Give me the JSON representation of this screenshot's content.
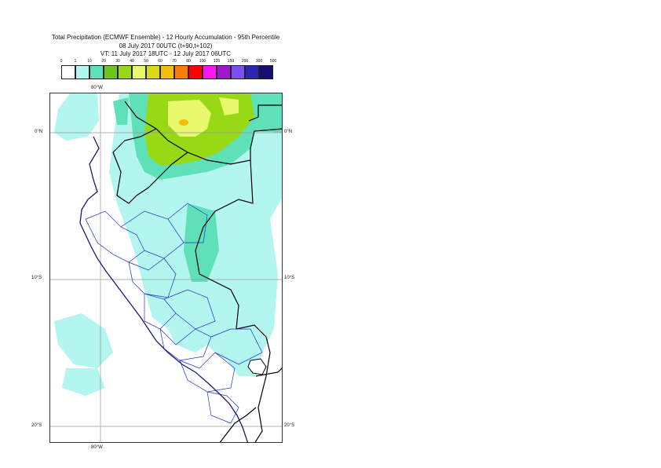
{
  "header": {
    "title_line1": "Total Precipitation (ECMWF Ensemble) - 12 Hourly Accumulation - 95th Percentile",
    "title_line2": "08 July 2017 00UTC (t+90,t+102)",
    "title_line3": "VT: 11 July 2017 18UTC - 12 July 2017 06UTC"
  },
  "legend": {
    "thresholds": [
      "0",
      "1",
      "10",
      "20",
      "30",
      "40",
      "50",
      "60",
      "70",
      "80",
      "100",
      "125",
      "150",
      "200",
      "300",
      "500"
    ],
    "colors": [
      "#ffffff",
      "#b3f5ef",
      "#5ee0b8",
      "#6cc61f",
      "#98d916",
      "#e8fa6c",
      "#dcd915",
      "#f3be0c",
      "#fd7d05",
      "#fc0302",
      "#f716f4",
      "#a017cf",
      "#7b4ff6",
      "#2c25b3",
      "#180f76"
    ]
  },
  "map": {
    "lon_label_top": "80°W",
    "lon_label_bottom": "80°W",
    "lat_labels": {
      "equator_left": "0°N",
      "equator_right": "0°N",
      "ten_s_left": "10°S",
      "ten_s_right": "10°S",
      "twenty_s_left": "20°S",
      "twenty_s_right": "20°S"
    },
    "colors": {
      "light_precip": "#b3f5ef",
      "moderate_precip": "#5ee0b8",
      "heavy_precip": "#98d916",
      "very_heavy_precip": "#e8fa6c",
      "peak_precip": "#f3be0c",
      "coastline": "#1a1a6e",
      "national_border": "#000000",
      "regional_border": "#1e2fd0",
      "gridline": "#999999"
    }
  }
}
